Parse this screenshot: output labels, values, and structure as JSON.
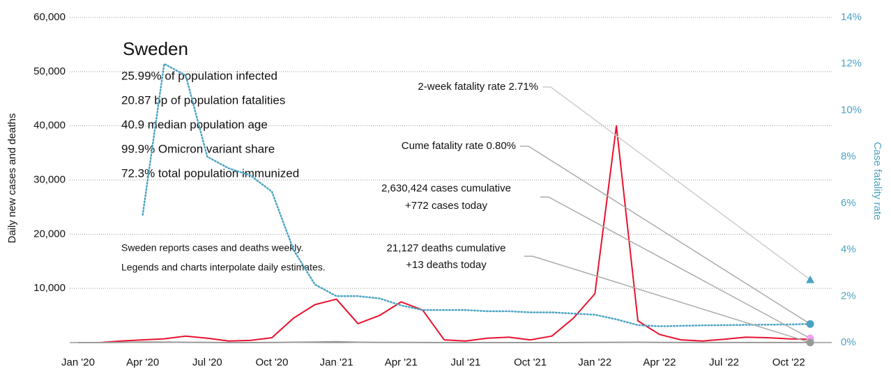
{
  "chart_data": {
    "type": "line",
    "title": "Sweden",
    "info": [
      "25.99% of population infected",
      "20.87 bp of population fatalities",
      "40.9 median population age",
      "99.9% Omicron variant share",
      "72.3% total population immunized"
    ],
    "notes": [
      "Sweden reports cases and deaths weekly.",
      "Legends and charts interpolate daily estimates."
    ],
    "ylabel": "Daily new cases and deaths",
    "y2label": "Case fatality rate",
    "x": [
      "2020-01",
      "2020-02",
      "2020-03",
      "2020-04",
      "2020-05",
      "2020-06",
      "2020-07",
      "2020-08",
      "2020-09",
      "2020-10",
      "2020-11",
      "2020-12",
      "2021-01",
      "2021-02",
      "2021-03",
      "2021-04",
      "2021-05",
      "2021-06",
      "2021-07",
      "2021-08",
      "2021-09",
      "2021-10",
      "2021-11",
      "2021-12",
      "2022-01",
      "2022-02",
      "2022-03",
      "2022-04",
      "2022-05",
      "2022-06",
      "2022-07",
      "2022-08",
      "2022-09",
      "2022-10",
      "2022-11"
    ],
    "series": [
      {
        "name": "Cases",
        "color": "#e8112d",
        "values": [
          0,
          0,
          300,
          500,
          700,
          1200,
          800,
          300,
          400,
          900,
          4500,
          7000,
          8000,
          3500,
          5000,
          7500,
          6000,
          500,
          300,
          800,
          1000,
          500,
          1200,
          4500,
          9000,
          40000,
          4000,
          1500,
          500,
          300,
          600,
          1000,
          900,
          700,
          600
        ]
      },
      {
        "name": "Deaths",
        "color": "#999999",
        "values": [
          0,
          0,
          20,
          90,
          80,
          50,
          20,
          5,
          5,
          10,
          60,
          100,
          150,
          60,
          30,
          20,
          15,
          5,
          3,
          3,
          5,
          5,
          5,
          10,
          20,
          50,
          60,
          40,
          15,
          10,
          10,
          15,
          10,
          10,
          10
        ]
      },
      {
        "name": "Case fatality rate",
        "color": "#4ba3c3",
        "axis": "y2",
        "values": [
          null,
          null,
          null,
          5.5,
          12,
          11.5,
          8,
          7.5,
          7.2,
          6.5,
          4,
          2.5,
          2,
          2,
          1.9,
          1.6,
          1.4,
          1.4,
          1.4,
          1.35,
          1.35,
          1.3,
          1.3,
          1.25,
          1.2,
          1,
          0.75,
          0.7,
          0.72,
          0.74,
          0.75,
          0.76,
          0.77,
          0.78,
          0.8
        ]
      }
    ],
    "markers": [
      {
        "label": [
          "2-week fatality rate 2.71%"
        ],
        "value": 2.71,
        "axis": "y2",
        "shape": "triangle",
        "color": "#4ba3c3"
      },
      {
        "label": [
          "Cume fatality rate 0.80%"
        ],
        "value": 0.8,
        "axis": "y2",
        "shape": "circle",
        "color": "#4ba3c3"
      },
      {
        "label": [
          "2,630,424 cases cumulative",
          "+772 cases today"
        ],
        "value": 772,
        "axis": "y",
        "shape": "circle",
        "color": "#f2a0f0"
      },
      {
        "label": [
          "21,127 deaths cumulative",
          "+13 deaths today"
        ],
        "value": 13,
        "axis": "y",
        "shape": "circle",
        "color": "#999999"
      }
    ],
    "xlim": [
      "2020-01",
      "2022-12"
    ],
    "xticks": [
      {
        "value": "2020-01",
        "label": "Jan '20"
      },
      {
        "value": "2020-04",
        "label": "Apr '20"
      },
      {
        "value": "2020-07",
        "label": "Jul '20"
      },
      {
        "value": "2020-10",
        "label": "Oct '20"
      },
      {
        "value": "2021-01",
        "label": "Jan '21"
      },
      {
        "value": "2021-04",
        "label": "Apr '21"
      },
      {
        "value": "2021-07",
        "label": "Jul '21"
      },
      {
        "value": "2021-10",
        "label": "Oct '21"
      },
      {
        "value": "2022-01",
        "label": "Jan '22"
      },
      {
        "value": "2022-04",
        "label": "Apr '22"
      },
      {
        "value": "2022-07",
        "label": "Jul '22"
      },
      {
        "value": "2022-10",
        "label": "Oct '22"
      }
    ],
    "ylim": [
      0,
      60000
    ],
    "yticks": [
      {
        "value": 10000,
        "label": "10,000"
      },
      {
        "value": 20000,
        "label": "20,000"
      },
      {
        "value": 30000,
        "label": "30,000"
      },
      {
        "value": 40000,
        "label": "40,000"
      },
      {
        "value": 50000,
        "label": "50,000"
      },
      {
        "value": 60000,
        "label": "60,000"
      }
    ],
    "y2lim": [
      0,
      14
    ],
    "y2ticks": [
      {
        "value": 0,
        "label": "0%"
      },
      {
        "value": 2,
        "label": "2%"
      },
      {
        "value": 4,
        "label": "4%"
      },
      {
        "value": 6,
        "label": "6%"
      },
      {
        "value": 8,
        "label": "8%"
      },
      {
        "value": 10,
        "label": "10%"
      },
      {
        "value": 12,
        "label": "12%"
      },
      {
        "value": 14,
        "label": "14%"
      }
    ],
    "grid": true
  }
}
